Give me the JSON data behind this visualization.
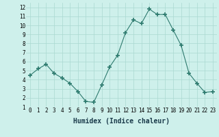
{
  "x": [
    0,
    1,
    2,
    3,
    4,
    5,
    6,
    7,
    8,
    9,
    10,
    11,
    12,
    13,
    14,
    15,
    16,
    17,
    18,
    19,
    20,
    21,
    22,
    23
  ],
  "y": [
    4.5,
    5.2,
    5.7,
    4.7,
    4.2,
    3.6,
    2.7,
    1.6,
    1.5,
    3.4,
    5.4,
    6.7,
    9.2,
    10.6,
    10.2,
    11.8,
    11.2,
    11.2,
    9.5,
    7.8,
    4.7,
    3.6,
    2.6,
    2.7
  ],
  "line_color": "#2d7a6e",
  "marker": "+",
  "marker_size": 4,
  "bg_color": "#cef0eb",
  "grid_color": "#aad8d0",
  "xlabel": "Humidex (Indice chaleur)",
  "xlim": [
    -0.5,
    23.5
  ],
  "ylim": [
    1,
    12.5
  ],
  "xticks": [
    0,
    1,
    2,
    3,
    4,
    5,
    6,
    7,
    8,
    9,
    10,
    11,
    12,
    13,
    14,
    15,
    16,
    17,
    18,
    19,
    20,
    21,
    22,
    23
  ],
  "yticks": [
    1,
    2,
    3,
    4,
    5,
    6,
    7,
    8,
    9,
    10,
    11,
    12
  ],
  "tick_label_size": 5.5,
  "xlabel_size": 7.0,
  "linewidth": 0.8,
  "marker_color": "#2d7a6e"
}
